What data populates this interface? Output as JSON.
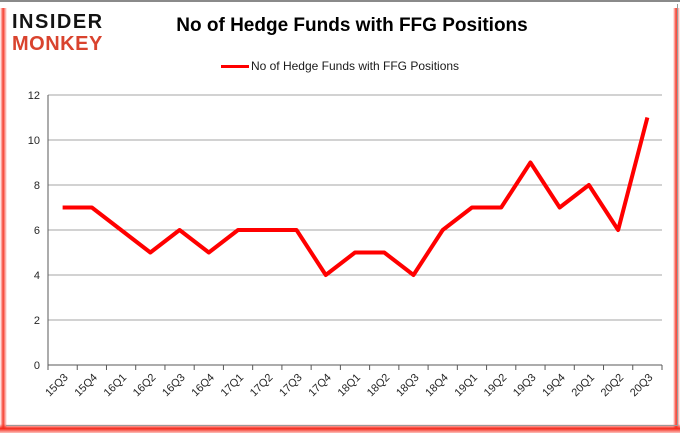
{
  "logo": {
    "line1": "INSIDER",
    "line2": "MONKEY"
  },
  "header": {
    "title": "No of Hedge Funds with FFG Positions"
  },
  "legend": {
    "label": "No of Hedge Funds with FFG Positions",
    "color": "#ff0000"
  },
  "chart_data": {
    "type": "line",
    "title": "No of Hedge Funds with FFG Positions",
    "categories": [
      "15Q3",
      "15Q4",
      "16Q1",
      "16Q2",
      "16Q3",
      "16Q4",
      "17Q1",
      "17Q2",
      "17Q3",
      "17Q4",
      "18Q1",
      "18Q2",
      "18Q3",
      "18Q4",
      "19Q1",
      "19Q2",
      "19Q3",
      "19Q4",
      "20Q1",
      "20Q2",
      "20Q3"
    ],
    "series": [
      {
        "name": "No of Hedge Funds with FFG Positions",
        "color": "#ff0000",
        "values": [
          7,
          7,
          6,
          5,
          6,
          5,
          6,
          6,
          6,
          4,
          5,
          5,
          4,
          6,
          7,
          7,
          9,
          7,
          8,
          6,
          11
        ]
      }
    ],
    "xlabel": "",
    "ylabel": "",
    "ylim": [
      0,
      12
    ],
    "yticks": [
      0,
      2,
      4,
      6,
      8,
      10,
      12
    ],
    "grid": true,
    "legend_position": "top-center"
  },
  "colors": {
    "line": "#ff0000",
    "grid": "#a6a6a6",
    "axis": "#595959",
    "tick_text": "#262626",
    "logo_black": "#131313",
    "logo_red": "#d9432e",
    "frame_red": "#f5291a",
    "frame_gray": "#8a8a8a"
  }
}
